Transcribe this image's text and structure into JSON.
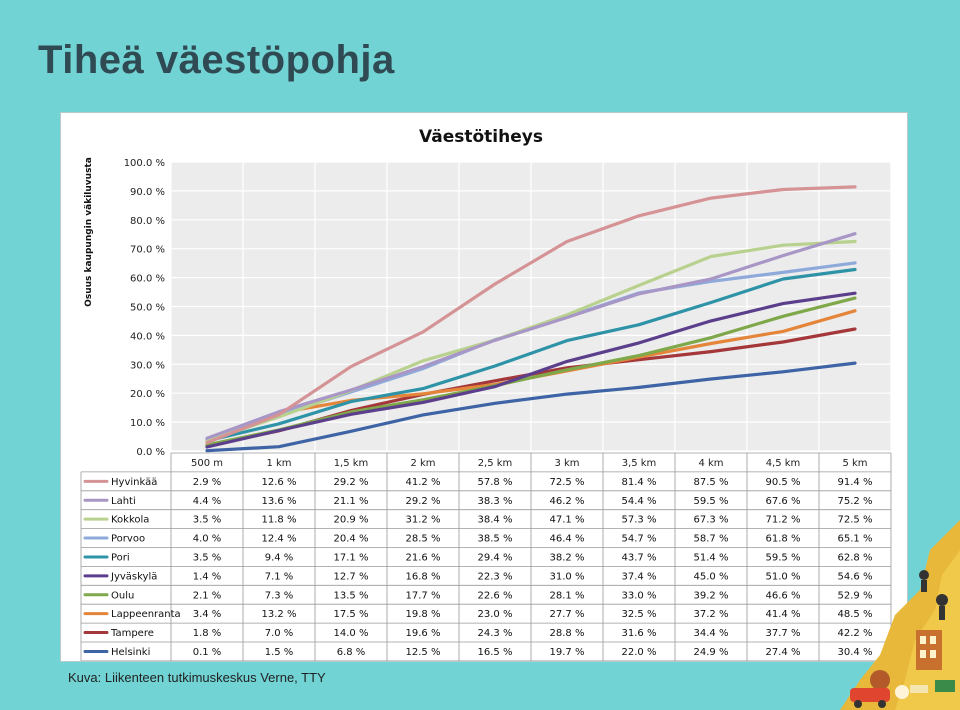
{
  "slide": {
    "title": "Tiheä väestöpohja",
    "caption": "Kuva: Liikenteen tutkimuskeskus Verne, TTY"
  },
  "colors": {
    "background": "#72d3d5",
    "title": "#2f4a52",
    "plot_area": "#ececec"
  },
  "chart_data": {
    "type": "line",
    "title": "Väestötiheys",
    "ylabel": "Osuus kaupungin väkiluvusta",
    "xlabel": "",
    "ylim": [
      0,
      100
    ],
    "yticks": [
      "0.0 %",
      "10.0 %",
      "20.0 %",
      "30.0 %",
      "40.0 %",
      "50.0 %",
      "60.0 %",
      "70.0 %",
      "80.0 %",
      "90.0 %",
      "100.0 %"
    ],
    "grid": true,
    "legend": "table-below",
    "categories": [
      "500 m",
      "1 km",
      "1,5 km",
      "2 km",
      "2,5 km",
      "3 km",
      "3,5 km",
      "4 km",
      "4,5 km",
      "5 km"
    ],
    "series": [
      {
        "name": "Hyvinkää",
        "color": "#d59396",
        "values": [
          2.9,
          12.6,
          29.2,
          41.2,
          57.8,
          72.5,
          81.4,
          87.5,
          90.5,
          91.4
        ],
        "labels": [
          "2.9 %",
          "12.6 %",
          "29.2 %",
          "41.2 %",
          "57.8 %",
          "72.5 %",
          "81.4 %",
          "87.5 %",
          "90.5 %",
          "91.4 %"
        ]
      },
      {
        "name": "Lahti",
        "color": "#a896c6",
        "values": [
          4.4,
          13.6,
          21.1,
          29.2,
          38.3,
          46.2,
          54.4,
          59.5,
          67.6,
          75.2
        ],
        "labels": [
          "4.4 %",
          "13.6 %",
          "21.1 %",
          "29.2 %",
          "38.3 %",
          "46.2 %",
          "54.4 %",
          "59.5 %",
          "67.6 %",
          "75.2 %"
        ]
      },
      {
        "name": "Kokkola",
        "color": "#b9d18e",
        "values": [
          3.5,
          11.8,
          20.9,
          31.2,
          38.4,
          47.1,
          57.3,
          67.3,
          71.2,
          72.5
        ],
        "labels": [
          "3.5 %",
          "11.8 %",
          "20.9 %",
          "31.2 %",
          "38.4 %",
          "47.1 %",
          "57.3 %",
          "67.3 %",
          "71.2 %",
          "72.5 %"
        ]
      },
      {
        "name": "Porvoo",
        "color": "#8eaadb",
        "values": [
          4.0,
          12.4,
          20.4,
          28.5,
          38.5,
          46.4,
          54.7,
          58.7,
          61.8,
          65.1
        ],
        "labels": [
          "4.0 %",
          "12.4 %",
          "20.4 %",
          "28.5 %",
          "38.5 %",
          "46.4 %",
          "54.7 %",
          "58.7 %",
          "61.8 %",
          "65.1 %"
        ]
      },
      {
        "name": "Pori",
        "color": "#2f93a8",
        "values": [
          3.5,
          9.4,
          17.1,
          21.6,
          29.4,
          38.2,
          43.7,
          51.4,
          59.5,
          62.8
        ],
        "labels": [
          "3.5 %",
          "9.4 %",
          "17.1 %",
          "21.6 %",
          "29.4 %",
          "38.2 %",
          "43.7 %",
          "51.4 %",
          "59.5 %",
          "62.8 %"
        ]
      },
      {
        "name": "Jyväskylä",
        "color": "#5c3f8c",
        "values": [
          1.4,
          7.1,
          12.7,
          16.8,
          22.3,
          31.0,
          37.4,
          45.0,
          51.0,
          54.6
        ],
        "labels": [
          "1.4 %",
          "7.1 %",
          "12.7 %",
          "16.8 %",
          "22.3 %",
          "31.0 %",
          "37.4 %",
          "45.0 %",
          "51.0 %",
          "54.6 %"
        ]
      },
      {
        "name": "Oulu",
        "color": "#7ea84a",
        "values": [
          2.1,
          7.3,
          13.5,
          17.7,
          22.6,
          28.1,
          33.0,
          39.2,
          46.6,
          52.9
        ],
        "labels": [
          "2.1 %",
          "7.3 %",
          "13.5 %",
          "17.7 %",
          "22.6 %",
          "28.1 %",
          "33.0 %",
          "39.2 %",
          "46.6 %",
          "52.9 %"
        ]
      },
      {
        "name": "Lappeenranta",
        "color": "#e4853a",
        "values": [
          3.4,
          13.2,
          17.5,
          19.8,
          23.0,
          27.7,
          32.5,
          37.2,
          41.4,
          48.5
        ],
        "labels": [
          "3.4 %",
          "13.2 %",
          "17.5 %",
          "19.8 %",
          "23.0 %",
          "27.7 %",
          "32.5 %",
          "37.2 %",
          "41.4 %",
          "48.5 %"
        ]
      },
      {
        "name": "Tampere",
        "color": "#a4373a",
        "values": [
          1.8,
          7.0,
          14.0,
          19.6,
          24.3,
          28.8,
          31.6,
          34.4,
          37.7,
          42.2
        ],
        "labels": [
          "1.8 %",
          "7.0 %",
          "14.0 %",
          "19.6 %",
          "24.3 %",
          "28.8 %",
          "31.6 %",
          "34.4 %",
          "37.7 %",
          "42.2 %"
        ]
      },
      {
        "name": "Helsinki",
        "color": "#3e64a6",
        "values": [
          0.1,
          1.5,
          6.8,
          12.5,
          16.5,
          19.7,
          22.0,
          24.9,
          27.4,
          30.4
        ],
        "labels": [
          "0.1 %",
          "1.5 %",
          "6.8 %",
          "12.5 %",
          "16.5 %",
          "19.7 %",
          "22.0 %",
          "24.9 %",
          "27.4 %",
          "30.4 %"
        ]
      }
    ]
  }
}
